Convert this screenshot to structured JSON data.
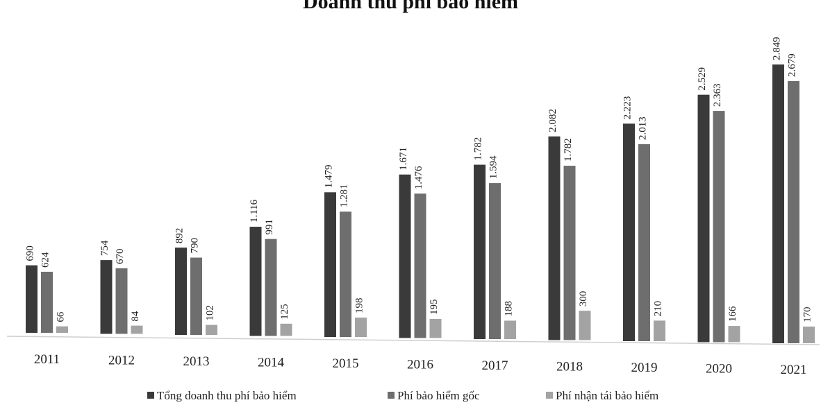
{
  "chart_data": {
    "type": "bar",
    "title": "Doanh thu phí bảo hiểm",
    "categories": [
      "2011",
      "2012",
      "2013",
      "2014",
      "2015",
      "2016",
      "2017",
      "2018",
      "2019",
      "2020",
      "2021"
    ],
    "series": [
      {
        "name": "Tổng doanh thu phí bảo hiểm",
        "color": "#3a3a3a",
        "values": [
          690,
          754,
          892,
          1116,
          1479,
          1671,
          1782,
          2082,
          2223,
          2529,
          2849
        ],
        "labels": [
          "690",
          "754",
          "892",
          "1.116",
          "1.479",
          "1.671",
          "1.782",
          "2.082",
          "2.223",
          "2.529",
          "2.849"
        ]
      },
      {
        "name": "Phí bảo hiểm gốc",
        "color": "#6e6e6e",
        "values": [
          624,
          670,
          790,
          991,
          1281,
          1476,
          1594,
          1782,
          2013,
          2363,
          2679
        ],
        "labels": [
          "624",
          "670",
          "790",
          "991",
          "1.281",
          "1.476",
          "1.594",
          "1.782",
          "2.013",
          "2.363",
          "2.679"
        ]
      },
      {
        "name": "Phí nhận tái bảo hiểm",
        "color": "#a3a3a3",
        "values": [
          66,
          84,
          102,
          125,
          198,
          195,
          188,
          300,
          210,
          166,
          170
        ],
        "labels": [
          "66",
          "84",
          "102",
          "125",
          "198",
          "195",
          "188",
          "300",
          "210",
          "166",
          "170"
        ]
      }
    ],
    "ylim": [
      0,
      3000
    ],
    "grid": false,
    "legend_position": "bottom"
  }
}
